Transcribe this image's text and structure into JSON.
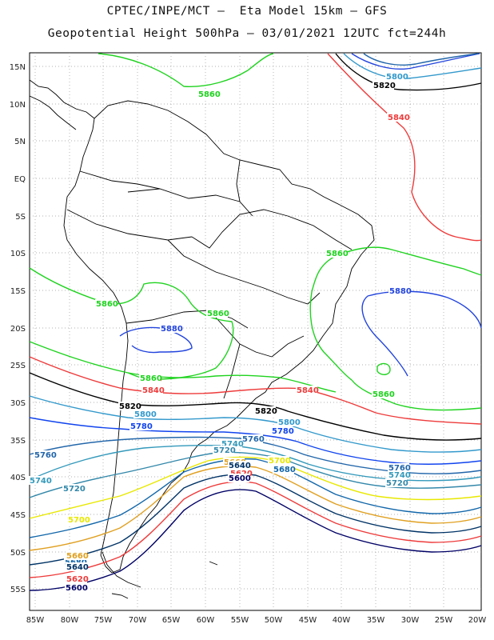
{
  "header": {
    "line1": "CPTEC/INPE/MCT –  Eta Model 15km – GFS",
    "line2": "Geopotential Height 500hPa – 03/01/2021 12UTC fct=244h"
  },
  "axes": {
    "lat_labels": [
      "15N",
      "10N",
      "5N",
      "EQ",
      "5S",
      "10S",
      "15S",
      "20S",
      "25S",
      "30S",
      "35S",
      "40S",
      "45S",
      "50S",
      "55S"
    ],
    "lon_labels": [
      "85W",
      "80W",
      "75W",
      "70W",
      "65W",
      "60W",
      "55W",
      "50W",
      "45W",
      "40W",
      "35W",
      "30W",
      "25W",
      "20W"
    ]
  },
  "contour_colors": {
    "5860": "#1fd31f",
    "5880": "#2244dd",
    "5840": "#ee3b3b",
    "5820": "#000000",
    "5800": "#3399cc",
    "5780": "#1144ee",
    "5760": "#2266aa",
    "5740": "#3399bb",
    "5720": "#3388aa",
    "5700": "#e8e800",
    "5680": "#1166aa",
    "5660": "#e0a020",
    "5640": "#003366",
    "5620": "#ee3b3b",
    "5600": "#000066"
  },
  "contour_labels": [
    {
      "text": "5860",
      "level": "5860"
    },
    {
      "text": "5800",
      "level": "5800"
    },
    {
      "text": "5820",
      "level": "5820"
    },
    {
      "text": "5840",
      "level": "5840"
    },
    {
      "text": "5860",
      "level": "5860"
    },
    {
      "text": "5880",
      "level": "5880"
    },
    {
      "text": "5860",
      "level": "5860"
    },
    {
      "text": "5860",
      "level": "5860"
    },
    {
      "text": "5880",
      "level": "5880"
    },
    {
      "text": "5840",
      "level": "5840"
    },
    {
      "text": "5860",
      "level": "5860"
    },
    {
      "text": "5840",
      "level": "5840"
    },
    {
      "text": "5840",
      "level": "5840"
    },
    {
      "text": "5860",
      "level": "5860"
    },
    {
      "text": "5820",
      "level": "5820"
    },
    {
      "text": "5800",
      "level": "5800"
    },
    {
      "text": "5780",
      "level": "5780"
    },
    {
      "text": "5820",
      "level": "5820"
    },
    {
      "text": "5800",
      "level": "5800"
    },
    {
      "text": "5780",
      "level": "5780"
    },
    {
      "text": "5760",
      "level": "5760"
    },
    {
      "text": "5740",
      "level": "5740"
    },
    {
      "text": "5720",
      "level": "5720"
    },
    {
      "text": "5700",
      "level": "5700"
    },
    {
      "text": "5680",
      "level": "5680"
    },
    {
      "text": "5660",
      "level": "5660"
    },
    {
      "text": "5620",
      "level": "5620"
    },
    {
      "text": "5640",
      "level": "5640"
    },
    {
      "text": "5600",
      "level": "5600"
    },
    {
      "text": "5760",
      "level": "5760"
    },
    {
      "text": "5740",
      "level": "5740"
    },
    {
      "text": "5720",
      "level": "5720"
    },
    {
      "text": "5700",
      "level": "5700"
    },
    {
      "text": "5680",
      "level": "5680"
    },
    {
      "text": "5660",
      "level": "5660"
    },
    {
      "text": "5640",
      "level": "5640"
    },
    {
      "text": "5620",
      "level": "5620"
    },
    {
      "text": "5600",
      "level": "5600"
    },
    {
      "text": "5760",
      "level": "5760"
    },
    {
      "text": "5740",
      "level": "5740"
    },
    {
      "text": "5720",
      "level": "5720"
    }
  ]
}
